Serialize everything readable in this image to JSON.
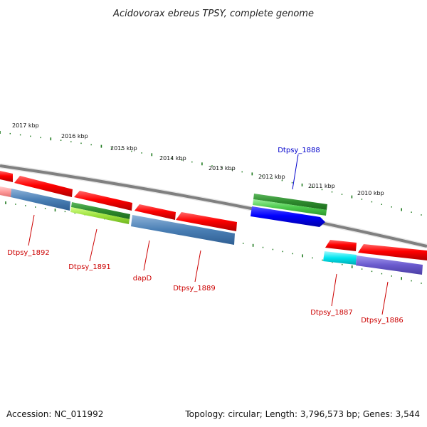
{
  "title": "Acidovorax ebreus TPSY, complete genome",
  "footer": {
    "accession": "Accession: NC_011992",
    "summary": "Topology: circular; Length: 3,796,573 bp; Genes: 3,544"
  },
  "scale_labels": [
    "2017 kbp",
    "2016 kbp",
    "2015 kbp",
    "2014 kbp",
    "2013 kbp",
    "2012 kbp",
    "2011 kbp",
    "2010 kbp"
  ],
  "genes": [
    {
      "name": "Dtpsy_1892",
      "color": "#ff0000"
    },
    {
      "name": "Dtpsy_1891",
      "color": "#ff0000"
    },
    {
      "name": "dapD",
      "color": "#ff0000"
    },
    {
      "name": "Dtpsy_1889",
      "color": "#ff0000"
    },
    {
      "name": "Dtpsy_1888",
      "color": "#0000ff"
    },
    {
      "name": "Dtpsy_1887",
      "color": "#ff0000"
    },
    {
      "name": "Dtpsy_1886",
      "color": "#ff0000"
    }
  ],
  "colors": {
    "backbone": "#808080",
    "tick": "#1e7a1e",
    "red_gene": "#ff0000",
    "blue_gene": "#0000ff",
    "dark_green_feature": "#2e8b2e",
    "light_green_feature": "#9be03c",
    "steel_blue_feature": "#4a7fb5",
    "cyan_feature": "#00e5ee",
    "purple_feature": "#6a5acd",
    "pink_feature": "#ff9999"
  }
}
